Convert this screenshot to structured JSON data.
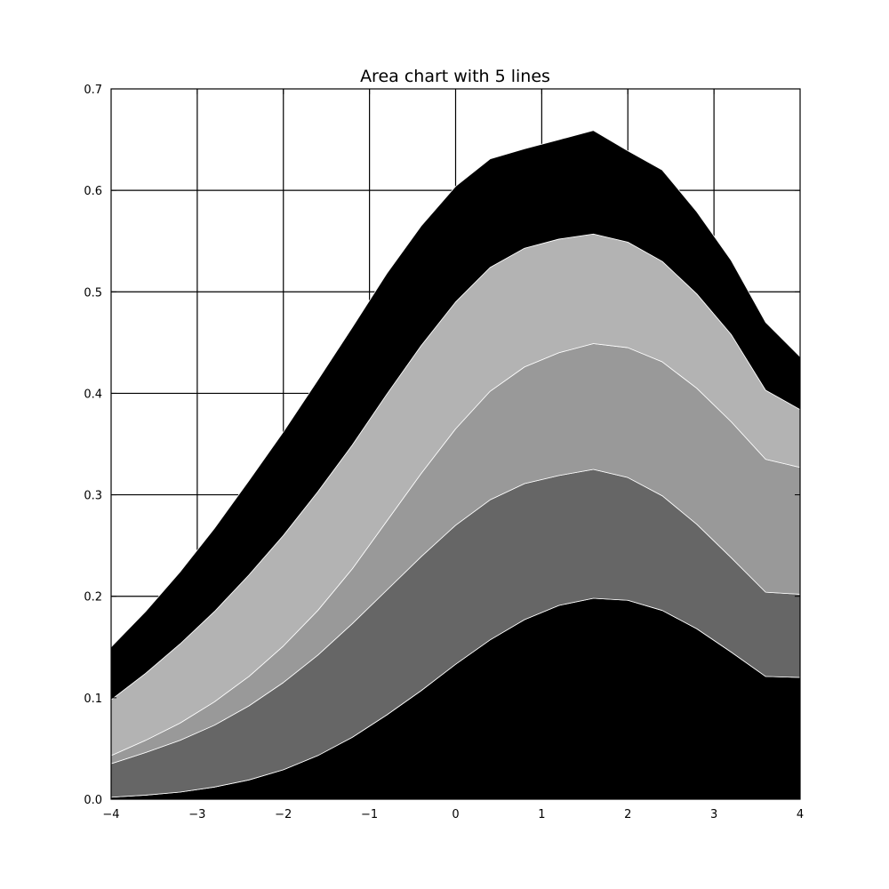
{
  "chart_data": {
    "type": "area",
    "stacked": true,
    "title": "Area chart with 5 lines",
    "xlabel": "",
    "ylabel": "",
    "xlim": [
      -4,
      4
    ],
    "ylim": [
      0,
      0.7
    ],
    "grid": true,
    "legend": "none",
    "x_ticks": [
      {
        "value": -4,
        "label": "−4"
      },
      {
        "value": -3,
        "label": "−3"
      },
      {
        "value": -2,
        "label": "−2"
      },
      {
        "value": -1,
        "label": "−1"
      },
      {
        "value": 0,
        "label": "0"
      },
      {
        "value": 1,
        "label": "1"
      },
      {
        "value": 2,
        "label": "2"
      },
      {
        "value": 3,
        "label": "3"
      },
      {
        "value": 4,
        "label": "4"
      }
    ],
    "y_ticks": [
      {
        "value": 0.0,
        "label": "0.0"
      },
      {
        "value": 0.1,
        "label": "0.1"
      },
      {
        "value": 0.2,
        "label": "0.2"
      },
      {
        "value": 0.3,
        "label": "0.3"
      },
      {
        "value": 0.4,
        "label": "0.4"
      },
      {
        "value": 0.5,
        "label": "0.5"
      },
      {
        "value": 0.6,
        "label": "0.6"
      },
      {
        "value": 0.7,
        "label": "0.7"
      }
    ],
    "x": [
      -4.0,
      -3.6,
      -3.2,
      -2.8,
      -2.4,
      -2.0,
      -1.6,
      -1.2,
      -0.8,
      -0.4,
      0.0,
      0.4,
      0.8,
      1.2,
      1.6,
      2.0,
      2.4,
      2.8,
      3.2,
      3.6,
      4.0
    ],
    "series": [
      {
        "color": "#000000",
        "values": [
          0.002,
          0.004,
          0.007,
          0.012,
          0.019,
          0.029,
          0.043,
          0.061,
          0.083,
          0.107,
          0.133,
          0.157,
          0.177,
          0.191,
          0.198,
          0.196,
          0.186,
          0.168,
          0.145,
          0.121,
          0.12
        ]
      },
      {
        "color": "#666666",
        "values": [
          0.033,
          0.042,
          0.051,
          0.061,
          0.073,
          0.086,
          0.099,
          0.112,
          0.123,
          0.132,
          0.137,
          0.138,
          0.134,
          0.128,
          0.127,
          0.121,
          0.113,
          0.103,
          0.093,
          0.083,
          0.082
        ]
      },
      {
        "color": "#999999",
        "values": [
          0.008,
          0.012,
          0.017,
          0.023,
          0.029,
          0.036,
          0.044,
          0.054,
          0.068,
          0.082,
          0.095,
          0.107,
          0.115,
          0.121,
          0.124,
          0.128,
          0.132,
          0.134,
          0.134,
          0.131,
          0.125
        ]
      },
      {
        "color": "#b3b3b3",
        "values": [
          0.055,
          0.066,
          0.078,
          0.089,
          0.1,
          0.109,
          0.117,
          0.122,
          0.125,
          0.126,
          0.125,
          0.122,
          0.117,
          0.112,
          0.108,
          0.104,
          0.099,
          0.093,
          0.086,
          0.068,
          0.057
        ]
      },
      {
        "color": "#000000",
        "values": [
          0.052,
          0.061,
          0.071,
          0.082,
          0.093,
          0.102,
          0.11,
          0.116,
          0.119,
          0.118,
          0.114,
          0.107,
          0.098,
          0.098,
          0.102,
          0.09,
          0.09,
          0.081,
          0.073,
          0.067,
          0.052
        ]
      }
    ]
  }
}
